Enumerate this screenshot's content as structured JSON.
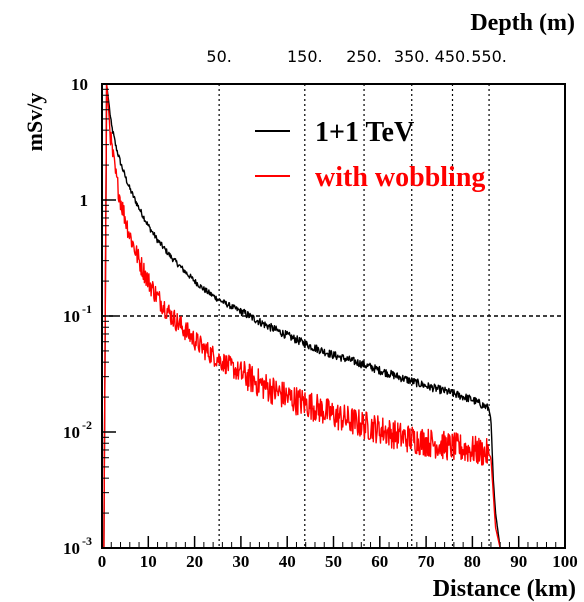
{
  "chart_data": {
    "type": "line",
    "xlabel": "Distance (km)",
    "ylabel": "mSv/y",
    "top_axis_label": "Depth (m)",
    "xlim": [
      0,
      100
    ],
    "ylim": [
      0.001,
      10
    ],
    "yscale": "log",
    "x_ticks": [
      0,
      10,
      20,
      30,
      40,
      50,
      60,
      70,
      80,
      90,
      100
    ],
    "y_ticks": [
      {
        "value": 10,
        "base": "10",
        "exp": ""
      },
      {
        "value": 1,
        "base": "1",
        "exp": ""
      },
      {
        "value": 0.1,
        "base": "10",
        "exp": "-1"
      },
      {
        "value": 0.01,
        "base": "10",
        "exp": "-2"
      },
      {
        "value": 0.001,
        "base": "10",
        "exp": "-3"
      }
    ],
    "top_ticks": [
      {
        "label": "50.",
        "x": 25.3
      },
      {
        "label": "150.",
        "x": 43.8
      },
      {
        "label": "250.",
        "x": 56.6
      },
      {
        "label": "350.",
        "x": 66.9
      },
      {
        "label": "450.",
        "x": 75.7
      },
      {
        "label": "550.",
        "x": 83.6
      }
    ],
    "reference_line": {
      "y": 0.1,
      "style": "dashed"
    },
    "legend_position": "top-right",
    "series": [
      {
        "name": "1+1 TeV",
        "color": "#000000",
        "x": [
          0.4,
          1,
          2,
          3,
          4,
          5,
          6,
          8,
          10,
          12,
          15,
          18,
          20,
          22,
          25,
          28,
          30,
          35,
          40,
          45,
          50,
          55,
          60,
          65,
          70,
          75,
          80,
          83.5,
          84,
          84.5,
          85,
          86
        ],
        "y": [
          0.001,
          10,
          4.5,
          2.9,
          2.1,
          1.6,
          1.25,
          0.85,
          0.6,
          0.45,
          0.32,
          0.24,
          0.2,
          0.17,
          0.14,
          0.12,
          0.11,
          0.085,
          0.068,
          0.055,
          0.046,
          0.04,
          0.034,
          0.029,
          0.025,
          0.022,
          0.019,
          0.016,
          0.013,
          0.004,
          0.002,
          0.001
        ]
      },
      {
        "name": "with wobbling",
        "color": "#ff0000",
        "x": [
          0.4,
          1,
          2,
          3,
          4,
          5,
          6,
          8,
          10,
          12,
          15,
          18,
          20,
          22,
          25,
          28,
          30,
          35,
          40,
          45,
          50,
          55,
          60,
          65,
          70,
          75,
          80,
          83.5,
          84,
          84.5,
          85,
          86
        ],
        "y": [
          0.001,
          10,
          3.0,
          1.6,
          1.0,
          0.7,
          0.5,
          0.3,
          0.2,
          0.145,
          0.1,
          0.075,
          0.062,
          0.052,
          0.043,
          0.036,
          0.032,
          0.025,
          0.02,
          0.017,
          0.014,
          0.012,
          0.0105,
          0.009,
          0.0082,
          0.0075,
          0.007,
          0.0065,
          0.006,
          0.003,
          0.0015,
          0.001
        ]
      }
    ]
  }
}
